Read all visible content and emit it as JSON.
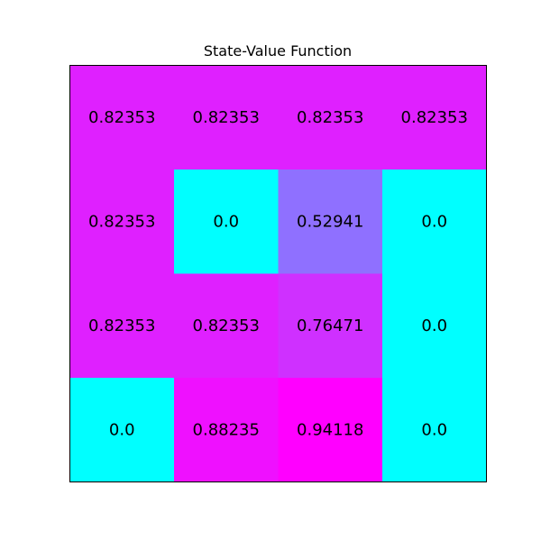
{
  "chart_data": {
    "type": "heatmap",
    "title": "State-Value Function",
    "xlabel": "",
    "ylabel": "",
    "colormap": "cool",
    "vmin": 0.0,
    "vmax": 0.94118,
    "values": [
      [
        0.82353,
        0.82353,
        0.82353,
        0.82353
      ],
      [
        0.82353,
        0.0,
        0.52941,
        0.0
      ],
      [
        0.82353,
        0.82353,
        0.76471,
        0.0
      ],
      [
        0.0,
        0.88235,
        0.94118,
        0.0
      ]
    ],
    "labels": [
      [
        "0.82353",
        "0.82353",
        "0.82353",
        "0.82353"
      ],
      [
        "0.82353",
        "0.0",
        "0.52941",
        "0.0"
      ],
      [
        "0.82353",
        "0.82353",
        "0.76471",
        "0.0"
      ],
      [
        "0.0",
        "0.88235",
        "0.94118",
        "0.0"
      ]
    ],
    "grid": false,
    "axes_ticks": false
  }
}
